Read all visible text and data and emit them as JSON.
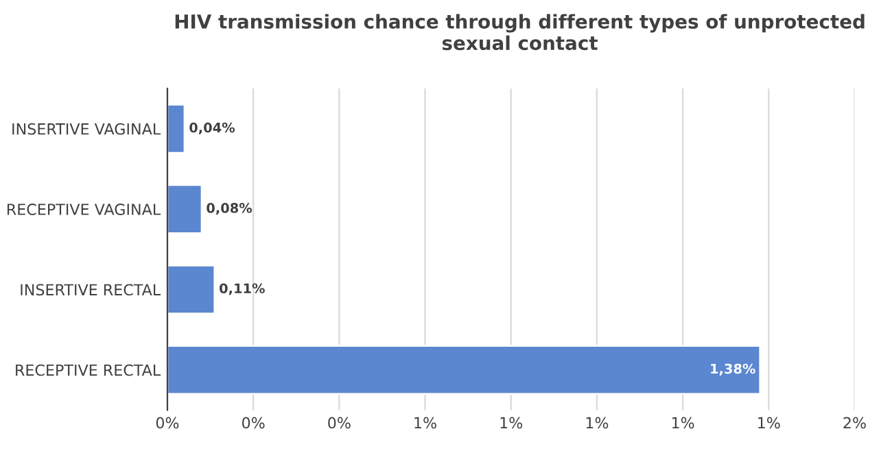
{
  "chart_data": {
    "type": "bar",
    "orientation": "horizontal",
    "title": "HIV transmission chance through different types of unprotected sexual contact",
    "categories": [
      "INSERTIVE VAGINAL",
      "RECEPTIVE VAGINAL",
      "INSERTIVE RECTAL",
      "RECEPTIVE RECTAL"
    ],
    "values": [
      0.04,
      0.08,
      0.11,
      1.38
    ],
    "value_labels": [
      "0,04%",
      "0,08%",
      "0,11%",
      "1,38%"
    ],
    "color": "#5b87d0",
    "xlim": [
      0,
      1.6
    ],
    "xticks": [
      {
        "value": 0,
        "label": "0%"
      },
      {
        "value": 0.2,
        "label": "0%"
      },
      {
        "value": 0.4,
        "label": "0%"
      },
      {
        "value": 0.6,
        "label": "1%"
      },
      {
        "value": 0.8,
        "label": "1%"
      },
      {
        "value": 1.0,
        "label": "1%"
      },
      {
        "value": 1.2,
        "label": "1%"
      },
      {
        "value": 1.4,
        "label": "1%"
      },
      {
        "value": 1.6,
        "label": "2%"
      }
    ],
    "grid": "x"
  }
}
